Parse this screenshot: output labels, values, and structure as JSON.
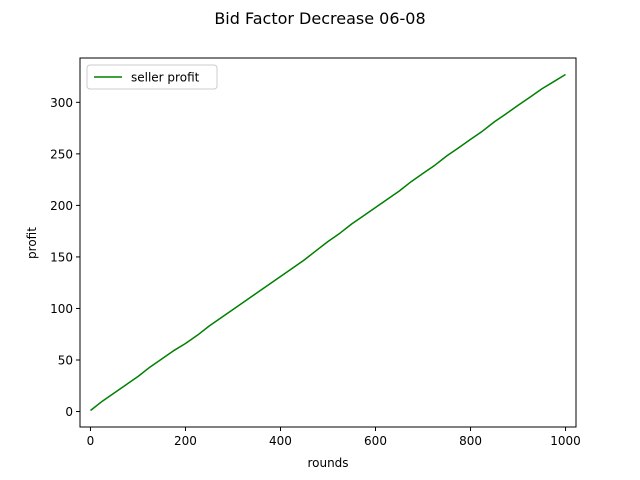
{
  "chart_data": {
    "type": "line",
    "title": "Bid Factor Decrease 06-08",
    "xlabel": "rounds",
    "ylabel": "profit",
    "xlim": [
      -22,
      1022
    ],
    "ylim": [
      -15,
      343
    ],
    "xticks": [
      0,
      200,
      400,
      600,
      800,
      1000
    ],
    "yticks": [
      0,
      50,
      100,
      150,
      200,
      250,
      300
    ],
    "grid": false,
    "legend": "upper-left",
    "series": [
      {
        "name": "seller profit",
        "color": "#008000",
        "x": [
          0,
          25,
          50,
          75,
          100,
          125,
          150,
          175,
          200,
          225,
          250,
          275,
          300,
          325,
          350,
          375,
          400,
          425,
          450,
          475,
          500,
          525,
          550,
          575,
          600,
          625,
          650,
          675,
          700,
          725,
          750,
          775,
          800,
          825,
          850,
          875,
          900,
          925,
          950,
          975,
          1000
        ],
        "y": [
          1,
          10,
          18,
          26,
          34,
          43,
          51,
          59,
          66,
          74,
          83,
          91,
          99,
          107,
          115,
          123,
          131,
          139,
          147,
          156,
          165,
          173,
          182,
          190,
          198,
          206,
          214,
          223,
          231,
          239,
          248,
          256,
          264,
          272,
          281,
          289,
          297,
          305,
          313,
          320,
          327
        ]
      }
    ]
  }
}
